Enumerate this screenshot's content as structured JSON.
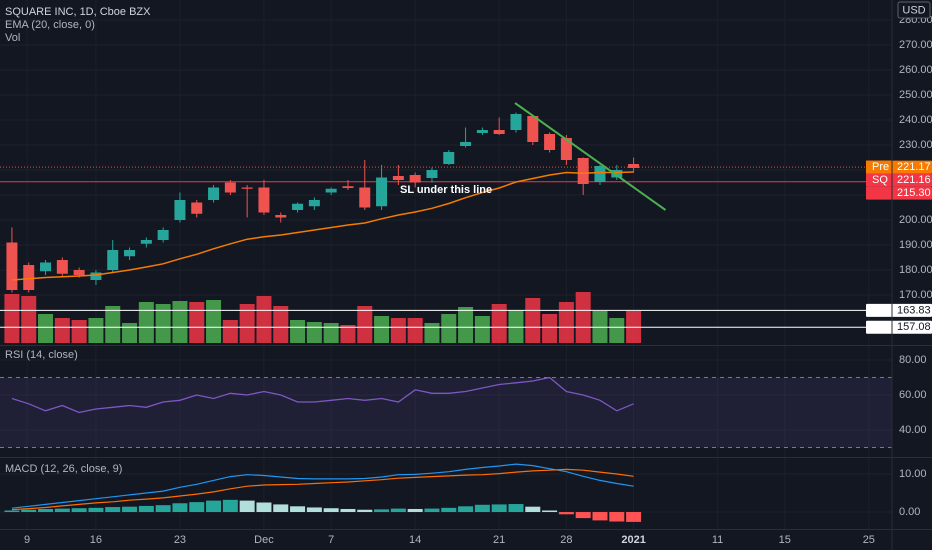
{
  "chart_data": [
    {
      "type": "candlestick",
      "title": "SQUARE INC, 1D, Cboe BZX",
      "currency": "USD",
      "xlim": [
        -0.71,
        52.38
      ],
      "xticks": [
        {
          "value": 0.9,
          "label": "9"
        },
        {
          "value": 5,
          "label": "16"
        },
        {
          "value": 10,
          "label": "23"
        },
        {
          "value": 15,
          "label": "Dec"
        },
        {
          "value": 19,
          "label": "7"
        },
        {
          "value": 24,
          "label": "14"
        },
        {
          "value": 29,
          "label": "21"
        },
        {
          "value": 33,
          "label": "28"
        },
        {
          "value": 37,
          "label": "2021"
        },
        {
          "value": 42,
          "label": "11"
        },
        {
          "value": 46,
          "label": "15"
        },
        {
          "value": 51,
          "label": "25"
        }
      ],
      "ylim": [
        150,
        288
      ],
      "yticks": [
        {
          "value": 280,
          "label": "280.00"
        },
        {
          "value": 270,
          "label": "270.00"
        },
        {
          "value": 260,
          "label": "260.00"
        },
        {
          "value": 250,
          "label": "250.00"
        },
        {
          "value": 240,
          "label": "240.00"
        },
        {
          "value": 230,
          "label": "230.00"
        },
        {
          "value": 220,
          "label": "220.00"
        },
        {
          "value": 210,
          "label": "210.00"
        },
        {
          "value": 200,
          "label": "200.00"
        },
        {
          "value": 190,
          "label": "190.00"
        },
        {
          "value": 180,
          "label": "180.00"
        },
        {
          "value": 170,
          "label": "170.00"
        }
      ],
      "grid": true,
      "up_color": "#26a69a",
      "down_color": "#ef5350",
      "open": [
        191,
        182,
        179.5,
        184,
        180,
        176,
        180,
        185.5,
        190.5,
        192,
        200,
        207,
        208,
        215,
        213,
        213,
        202,
        204,
        205.5,
        211,
        213.5,
        213,
        205.5,
        217.6,
        218,
        216.8,
        222.4,
        229.6,
        234.8,
        236,
        236,
        241.6,
        234.4,
        232.8,
        224.8,
        215.2,
        217,
        222.4
      ],
      "high": [
        197,
        183,
        184,
        185,
        181,
        180,
        192,
        189,
        193,
        197,
        211,
        208,
        214,
        216,
        214,
        216,
        203,
        207,
        209,
        213,
        216,
        224,
        222,
        222,
        219,
        221,
        228,
        237,
        237,
        241,
        243,
        242,
        235,
        234,
        225,
        222,
        222,
        225
      ],
      "low": [
        171,
        171,
        178,
        177,
        177,
        174,
        179,
        184,
        189,
        191,
        199,
        201,
        207,
        210,
        201,
        202,
        199,
        203,
        204,
        210,
        212,
        204,
        204,
        214,
        213,
        215,
        222,
        229,
        234,
        234,
        235,
        230,
        227,
        222,
        210,
        214,
        216,
        219
      ],
      "close": [
        172,
        172,
        183,
        178.5,
        178,
        179,
        188,
        188,
        192,
        196,
        208,
        202.5,
        213,
        211,
        212.5,
        203,
        201,
        206.5,
        208,
        212.5,
        212.8,
        205,
        217,
        216,
        215,
        220,
        227.2,
        231.2,
        236,
        234.4,
        242.4,
        231.2,
        228,
        224,
        214.4,
        221.6,
        220,
        220.8
      ],
      "ema": {
        "name": "EMA (20, close, 0)",
        "color": "#f57c00",
        "values": [
          176,
          176.5,
          177,
          177.3,
          177.6,
          178,
          179,
          180,
          181.2,
          182.5,
          184.5,
          186.3,
          188.5,
          190.5,
          192.3,
          193.3,
          194,
          195,
          196,
          197,
          198,
          198.8,
          200.5,
          202,
          203.2,
          204.7,
          206.6,
          208.9,
          211,
          212.8,
          215.2,
          216.6,
          218,
          219,
          218.7,
          219,
          219,
          219.2
        ]
      },
      "volume": {
        "name": "Vol",
        "up_color": "#4caf50",
        "down_color": "#f23645",
        "ylim": [
          0,
          343
        ],
        "values": [
          49,
          47,
          29,
          25,
          23,
          25,
          37,
          20,
          41,
          39,
          42,
          41,
          43,
          23,
          39,
          47,
          37,
          23,
          21,
          20,
          18,
          37,
          27,
          25,
          25,
          20,
          29,
          36,
          27,
          39,
          33,
          45,
          29,
          41,
          51,
          32,
          25,
          32
        ]
      },
      "price_lines": [
        {
          "tag": "Pre",
          "value": 221.17,
          "label": "221.17",
          "color": "#f57c00",
          "dashed": true
        },
        {
          "tag": "SQ",
          "value": 221.16,
          "label": "221.16",
          "color": "#f23645",
          "dashed": true
        },
        {
          "value": 215.3,
          "label": "215.30",
          "color": "#f23645"
        },
        {
          "value": 163.83,
          "label": "163.83",
          "color": "#ffffff"
        },
        {
          "value": 157.08,
          "label": "157.08",
          "color": "#ffffff"
        }
      ],
      "trendline": {
        "color": "#4caf50",
        "x": [
          29.94,
          38.9
        ],
        "y": [
          246.8,
          204
        ]
      },
      "annotation": "SL under this line"
    },
    {
      "type": "line",
      "title": "RSI (14, close)",
      "color": "#7e57c2",
      "ylim": [
        24.6,
        88
      ],
      "yticks": [
        {
          "value": 80,
          "label": "80.00"
        },
        {
          "value": 60,
          "label": "60.00"
        },
        {
          "value": 40,
          "label": "40.00"
        }
      ],
      "bands": [
        70,
        30
      ],
      "values": [
        58,
        55,
        51,
        54,
        50,
        52,
        53,
        54,
        53,
        56,
        57,
        60,
        58,
        61,
        60,
        62,
        60,
        56,
        56,
        57,
        58,
        57,
        58,
        56,
        63,
        61,
        61,
        62,
        64,
        66,
        67,
        68,
        70,
        62,
        60,
        57,
        51,
        55
      ]
    },
    {
      "type": "macd",
      "title": "MACD (12, 26, close, 9)",
      "ylim": [
        -4.2,
        14.2
      ],
      "yticks": [
        {
          "value": 10,
          "label": "10.00"
        },
        {
          "value": 0,
          "label": "0.00"
        }
      ],
      "series": [
        {
          "name": "MACD",
          "color": "#2196f3",
          "values": [
            1,
            1.5,
            2,
            2.5,
            3,
            3.5,
            4,
            4.5,
            5,
            5.5,
            6.5,
            7.3,
            8.3,
            9.3,
            9.8,
            9.6,
            9.2,
            8.8,
            8.7,
            8.7,
            8.7,
            8.8,
            9.2,
            9.8,
            9.9,
            10.2,
            10.6,
            11.2,
            11.7,
            12.1,
            12.6,
            12.2,
            11.4,
            10.6,
            9.4,
            8.3,
            7.5,
            6.8
          ]
        },
        {
          "name": "Signal",
          "color": "#ff6d00",
          "values": [
            0.6,
            0.9,
            1.2,
            1.6,
            2.0,
            2.4,
            2.7,
            3.1,
            3.4,
            3.7,
            4.2,
            4.7,
            5.3,
            6.1,
            6.8,
            7.1,
            7.2,
            7.3,
            7.5,
            7.7,
            7.9,
            8.2,
            8.5,
            8.9,
            9.1,
            9.3,
            9.5,
            9.7,
            9.8,
            10.1,
            10.5,
            10.8,
            11.0,
            11.2,
            11.0,
            10.5,
            10.0,
            9.4
          ]
        }
      ],
      "histogram": [
        0.4,
        0.6,
        0.8,
        0.9,
        1.0,
        1.1,
        1.3,
        1.4,
        1.6,
        1.8,
        2.3,
        2.6,
        3.0,
        3.2,
        3.0,
        2.5,
        2.0,
        1.5,
        1.2,
        1.0,
        0.8,
        0.6,
        0.7,
        0.9,
        0.8,
        0.9,
        1.1,
        1.5,
        1.9,
        2.0,
        2.1,
        1.4,
        0.4,
        -0.6,
        -1.6,
        -2.2,
        -2.5,
        -2.6
      ]
    }
  ]
}
